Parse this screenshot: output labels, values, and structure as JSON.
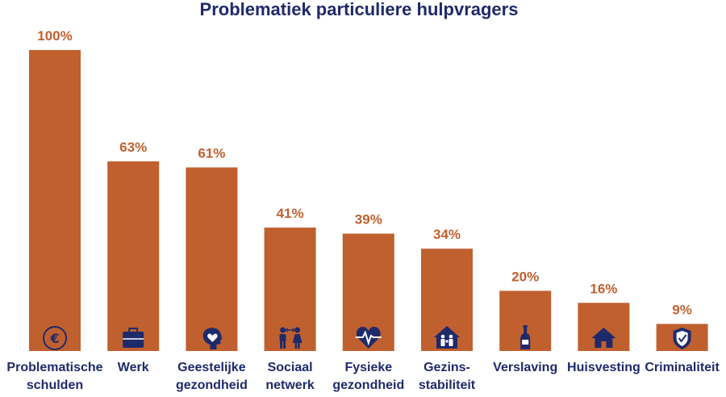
{
  "chart_data": {
    "type": "bar",
    "title": "Problematiek particuliere hulpvragers",
    "xlabel": "",
    "ylabel": "",
    "ylim": [
      0,
      100
    ],
    "grid": false,
    "legend": "none",
    "unit": "%",
    "categories": [
      [
        "Problematische",
        "schulden"
      ],
      [
        "Werk"
      ],
      [
        "Geestelijke",
        "gezondheid"
      ],
      [
        "Sociaal",
        "netwerk"
      ],
      [
        "Fysieke",
        "gezondheid"
      ],
      [
        "Gezins-",
        "stabiliteit"
      ],
      [
        "Verslaving"
      ],
      [
        "Huisvesting"
      ],
      [
        "Criminaliteit"
      ]
    ],
    "values": [
      100,
      63,
      61,
      41,
      39,
      34,
      20,
      16,
      9
    ],
    "icons": [
      "euro-icon",
      "briefcase-icon",
      "head-heart-icon",
      "people-icon",
      "heartbeat-icon",
      "family-home-icon",
      "bottle-icon",
      "house-icon",
      "shield-check-icon"
    ],
    "colors": {
      "bar": "#c0602f",
      "label": "#c0602f",
      "text": "#1f2a6b",
      "icon": "#1f2a6b"
    }
  }
}
